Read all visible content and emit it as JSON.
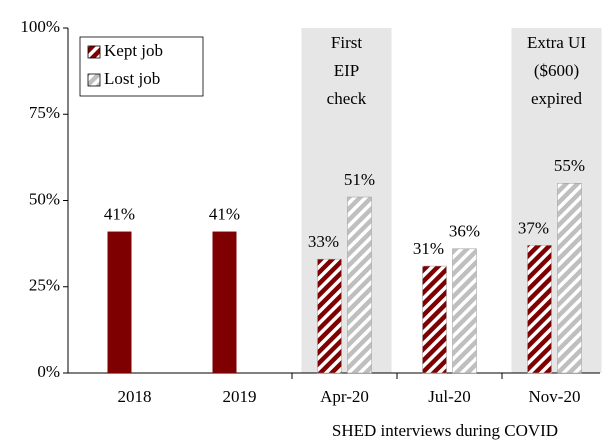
{
  "chart_data": {
    "type": "bar",
    "categories": [
      "2018",
      "2019",
      "Apr-20",
      "Jul-20",
      "Nov-20"
    ],
    "series": [
      {
        "name": "Kept job",
        "color": "#7f0000",
        "hatched": [
          false,
          false,
          true,
          true,
          true
        ],
        "values": [
          41,
          41,
          33,
          31,
          37
        ],
        "value_labels": [
          "41%",
          "41%",
          "33%",
          "31%",
          "37%"
        ]
      },
      {
        "name": "Lost job",
        "color": "#bfbfbf",
        "hatched": [
          true,
          true,
          true,
          true,
          true
        ],
        "values": [
          null,
          null,
          51,
          36,
          55
        ],
        "value_labels": [
          null,
          null,
          "51%",
          "36%",
          "55%"
        ]
      }
    ],
    "ylim": [
      0,
      100
    ],
    "yticks": [
      {
        "value": 0,
        "label": "0%"
      },
      {
        "value": 25,
        "label": "25%"
      },
      {
        "value": 50,
        "label": "50%"
      },
      {
        "value": 75,
        "label": "75%"
      },
      {
        "value": 100,
        "label": "100%"
      }
    ],
    "xlabel": "SHED interviews during COVID",
    "legend": "upper left",
    "shading_color": "#e6e6e6",
    "annotations": [
      {
        "category": "Apr-20",
        "lines": [
          "First",
          "EIP",
          "check"
        ]
      },
      {
        "category": "Nov-20",
        "lines": [
          "Extra UI",
          "($600)",
          "expired"
        ]
      }
    ]
  }
}
